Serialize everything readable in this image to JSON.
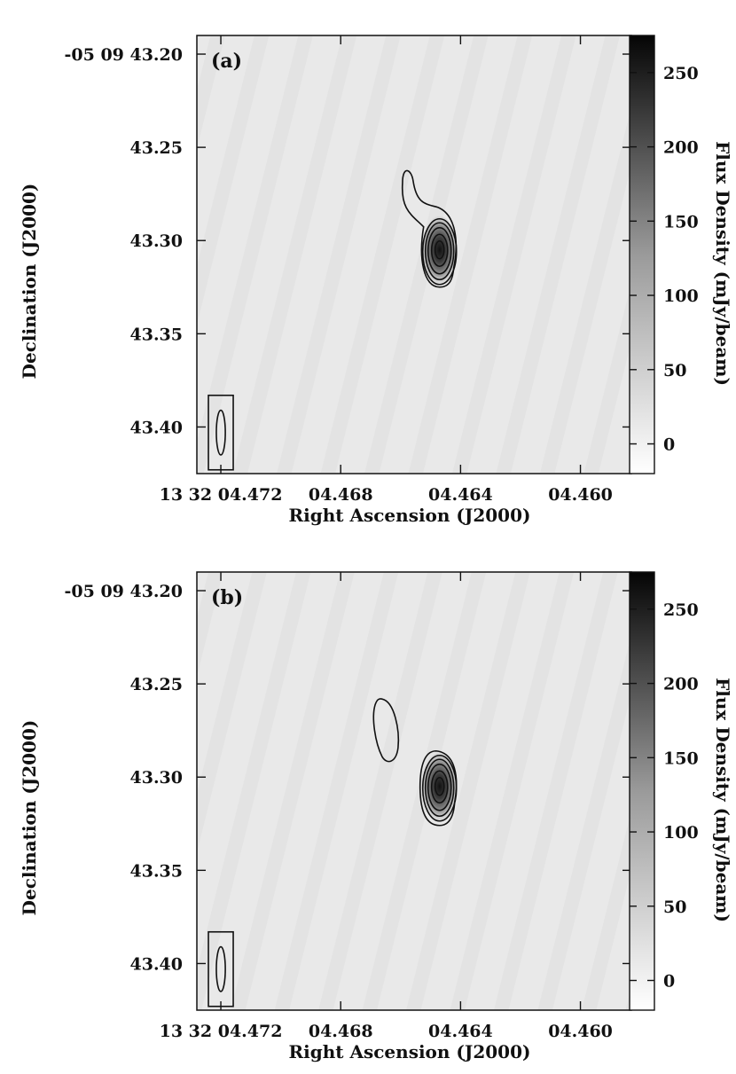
{
  "chart_data": [
    {
      "type": "heatmap",
      "panel_label": "(a)",
      "xlabel": "Right Ascension (J2000)",
      "ylabel": "Declination (J2000)",
      "colorbar_label": "Flux Density (mJy/beam)",
      "x_ticks": [
        {
          "value": 4.472,
          "label": "13 32 04.472"
        },
        {
          "value": 4.468,
          "label": "04.468"
        },
        {
          "value": 4.464,
          "label": "04.464"
        },
        {
          "value": 4.46,
          "label": "04.460"
        }
      ],
      "y_ticks": [
        {
          "value": 43.2,
          "label": "-05 09 43.20"
        },
        {
          "value": 43.25,
          "label": "43.25"
        },
        {
          "value": 43.3,
          "label": "43.30"
        },
        {
          "value": 43.35,
          "label": "43.35"
        },
        {
          "value": 43.4,
          "label": "43.40"
        }
      ],
      "colorbar_ticks": [
        {
          "value": 0,
          "label": "0"
        },
        {
          "value": 50,
          "label": "50"
        },
        {
          "value": 100,
          "label": "100"
        },
        {
          "value": 150,
          "label": "150"
        },
        {
          "value": 200,
          "label": "200"
        },
        {
          "value": 250,
          "label": "250"
        }
      ],
      "xlim": [
        4.4728,
        4.4583
      ],
      "ylim": [
        43.19,
        43.425
      ],
      "colorbar_range": [
        -20,
        275
      ],
      "peak": {
        "ra": 4.4647,
        "dec": 43.305,
        "flux": 275
      },
      "extension": {
        "ra": 4.4657,
        "dec": 43.27
      },
      "beam": {
        "ra": 4.472,
        "dec": 43.403,
        "ra_halfwidth": 0.00015,
        "dec_halfwidth": 0.012
      }
    },
    {
      "type": "heatmap",
      "panel_label": "(b)",
      "xlabel": "Right Ascension (J2000)",
      "ylabel": "Declination (J2000)",
      "colorbar_label": "Flux Density (mJy/beam)",
      "x_ticks": [
        {
          "value": 4.472,
          "label": "13 32 04.472"
        },
        {
          "value": 4.468,
          "label": "04.468"
        },
        {
          "value": 4.464,
          "label": "04.464"
        },
        {
          "value": 4.46,
          "label": "04.460"
        }
      ],
      "y_ticks": [
        {
          "value": 43.2,
          "label": "-05 09 43.20"
        },
        {
          "value": 43.25,
          "label": "43.25"
        },
        {
          "value": 43.3,
          "label": "43.30"
        },
        {
          "value": 43.35,
          "label": "43.35"
        },
        {
          "value": 43.4,
          "label": "43.40"
        }
      ],
      "colorbar_ticks": [
        {
          "value": 0,
          "label": "0"
        },
        {
          "value": 50,
          "label": "50"
        },
        {
          "value": 100,
          "label": "100"
        },
        {
          "value": 150,
          "label": "150"
        },
        {
          "value": 200,
          "label": "200"
        },
        {
          "value": 250,
          "label": "250"
        }
      ],
      "xlim": [
        4.4728,
        4.4583
      ],
      "ylim": [
        43.19,
        43.425
      ],
      "colorbar_range": [
        -20,
        275
      ],
      "peak": {
        "ra": 4.4647,
        "dec": 43.305,
        "flux": 275
      },
      "extension": {
        "ra": 4.4665,
        "dec": 43.27
      },
      "beam": {
        "ra": 4.472,
        "dec": 43.403,
        "ra_halfwidth": 0.00015,
        "dec_halfwidth": 0.012
      }
    }
  ],
  "colors": {
    "ink": "#111111",
    "background": "#e9e9e9",
    "stripe": "#dddddd",
    "peak": "#1a1a1a"
  }
}
